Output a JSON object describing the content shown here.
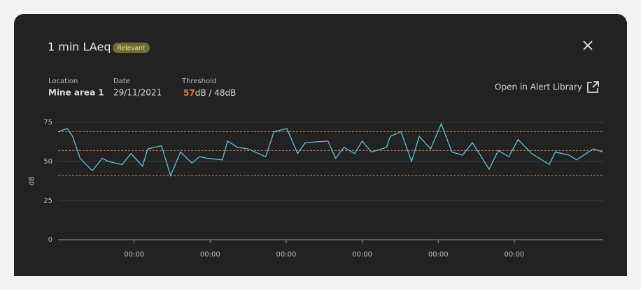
{
  "header": {
    "title": "1 min LAeq",
    "badge": "Relevant"
  },
  "info": {
    "location_label": "Location",
    "location": "Mine area 1",
    "date_label": "Date",
    "date": "29/11/2021",
    "threshold_label": "Threshold",
    "threshold_value": "57",
    "threshold_rest": "dB / 48dB"
  },
  "link": "Open in Alert Library",
  "chart_data": {
    "type": "line",
    "y_label": "dB",
    "x": [
      0,
      0.12,
      0.19,
      0.29,
      0.45,
      0.58,
      0.66,
      0.84,
      0.96,
      1.11,
      1.18,
      1.36,
      1.48,
      1.61,
      1.76,
      1.86,
      1.96,
      2.16,
      2.23,
      2.36,
      2.5,
      2.73,
      2.84,
      3.01,
      3.15,
      3.25,
      3.55,
      3.65,
      3.76,
      3.9,
      4.0,
      4.12,
      4.32,
      4.37,
      4.51,
      4.65,
      4.75,
      4.9,
      5.04,
      5.18,
      5.32,
      5.45,
      5.67,
      5.79,
      5.93,
      6.05,
      6.23,
      6.46,
      6.54,
      6.72,
      6.82,
      7.04,
      7.17
    ],
    "series": [
      {
        "color": "#5bc4e0",
        "values": [
          69,
          71,
          66,
          52,
          44,
          52,
          50,
          48,
          55,
          47,
          58,
          60,
          41,
          56,
          49,
          53,
          52,
          51,
          63,
          59,
          58,
          53,
          69,
          71,
          55,
          62,
          63,
          52,
          59,
          55,
          63,
          56,
          59,
          66,
          69,
          50,
          66,
          58,
          74,
          56,
          54,
          62,
          45,
          57,
          53,
          64,
          55,
          48,
          56,
          54,
          51,
          58,
          56
        ]
      }
    ],
    "reference_lines": [
      69,
      57,
      41
    ],
    "reference_color": "#e07b39",
    "xlim": [
      0,
      7.17
    ],
    "ylim": [
      0,
      75
    ],
    "yticks": [
      0,
      25,
      50,
      75
    ],
    "xticks": [
      {
        "value": 1,
        "label": "00:00"
      },
      {
        "value": 2,
        "label": "00:00"
      },
      {
        "value": 3,
        "label": "00:00"
      },
      {
        "value": 4,
        "label": "00:00"
      },
      {
        "value": 5,
        "label": "00:00"
      },
      {
        "value": 6,
        "label": "00:00"
      }
    ],
    "grid": true
  }
}
